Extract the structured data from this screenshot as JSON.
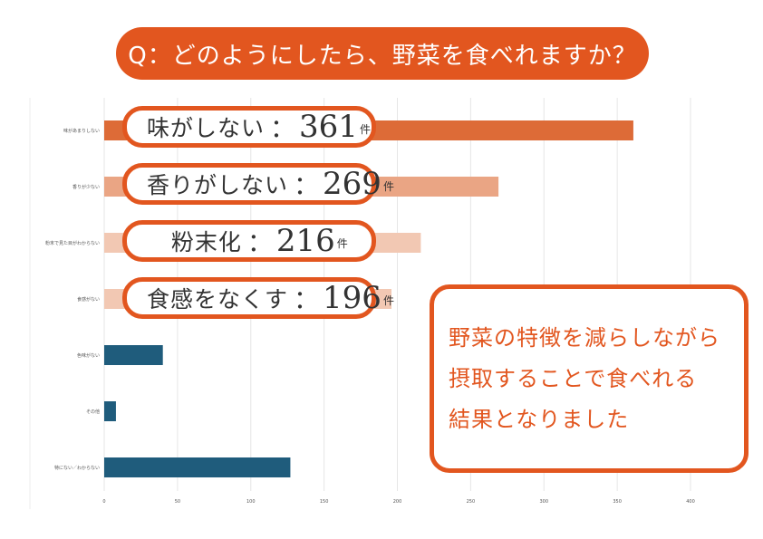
{
  "title": "Q：どのようにしたら、野菜を食べれますか？",
  "chart_data": {
    "type": "bar",
    "orientation": "horizontal",
    "categories": [
      "味があまりしない",
      "香りが少ない",
      "粉末で見た目がわからない",
      "食感がない",
      "色味がない",
      "その他",
      "特にない／わからない"
    ],
    "values": [
      361,
      269,
      216,
      196,
      40,
      8,
      127
    ],
    "colors": [
      "#dd6b37",
      "#eaa584",
      "#f2c8b3",
      "#f2c8b3",
      "#1f5c7c",
      "#1f5c7c",
      "#1f5c7c"
    ],
    "xlim": [
      0,
      400
    ],
    "xticks": [
      "0",
      "50",
      "100",
      "150",
      "200",
      "250",
      "300",
      "350",
      "400"
    ],
    "grid": true
  },
  "callouts": [
    {
      "text": "味がしない",
      "sep": "：",
      "value": "361",
      "unit": "件"
    },
    {
      "text": "香りがしない",
      "sep": "：",
      "value": "269",
      "unit": "件"
    },
    {
      "text": "   粉末化",
      "sep": "：",
      "value": "216",
      "unit": "件"
    },
    {
      "text": "食感をなくす",
      "sep": "：",
      "value": "196",
      "unit": "件"
    }
  ],
  "note": {
    "lines": [
      "野菜の特徴を減らしながら",
      "摂取することで食べれる",
      "結果となりました"
    ]
  }
}
